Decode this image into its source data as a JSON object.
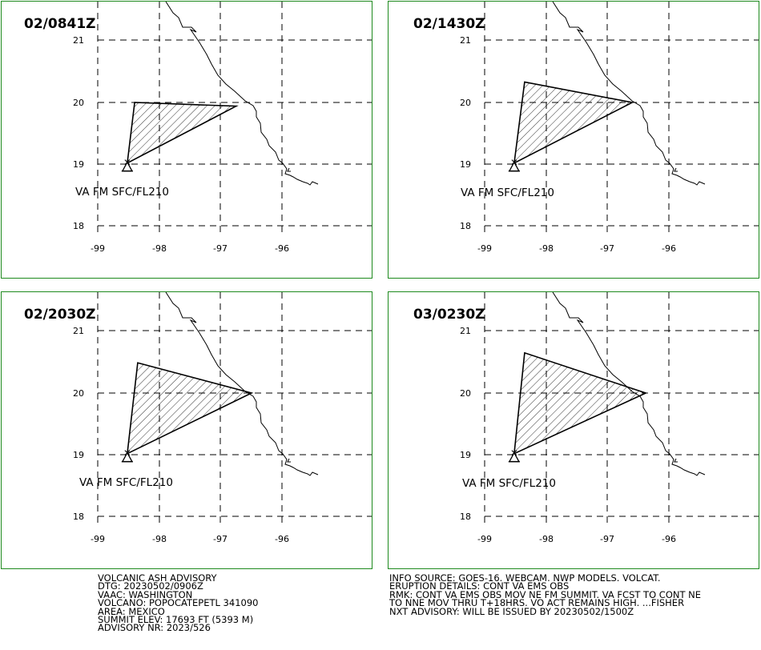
{
  "panels": [
    {
      "time": "02/0841Z",
      "level": "VA FM SFC/FL210",
      "polygon": [
        [
          -98.52,
          19.02
        ],
        [
          -98.4,
          20.0
        ],
        [
          -96.75,
          19.94
        ]
      ]
    },
    {
      "time": "02/1430Z",
      "level": "VA FM SFC/FL210",
      "polygon": [
        [
          -98.52,
          19.02
        ],
        [
          -98.35,
          20.33
        ],
        [
          -96.6,
          20.0
        ]
      ]
    },
    {
      "time": "02/2030Z",
      "level": "VA FM SFC/FL210",
      "polygon": [
        [
          -98.52,
          19.02
        ],
        [
          -98.35,
          20.49
        ],
        [
          -96.5,
          20.0
        ]
      ]
    },
    {
      "time": "03/0230Z",
      "level": "VA FM SFC/FL210",
      "polygon": [
        [
          -98.52,
          19.02
        ],
        [
          -98.35,
          20.65
        ],
        [
          -96.38,
          20.0
        ]
      ]
    }
  ],
  "axes": {
    "lon_ticks": [
      "-99",
      "-98",
      "-97",
      "-96"
    ],
    "lat_ticks": [
      "21",
      "20",
      "19",
      "18"
    ]
  },
  "advisory_left": [
    "VOLCANIC ASH ADVISORY",
    "DTG: 20230502/0906Z",
    "VAAC: WASHINGTON",
    "VOLCANO: POPOCATEPETL 341090",
    "AREA: MEXICO",
    "SUMMIT ELEV: 17693 FT (5393 M)",
    "ADVISORY NR: 2023/526"
  ],
  "advisory_right": [
    "INFO SOURCE: GOES-16. WEBCAM. NWP MODELS. VOLCAT.",
    "ERUPTION DETAILS: CONT VA EMS OBS",
    "RMK: CONT VA EMS OBS MOV NE FM SUMMIT. VA FCST TO CONT NE",
    "TO NNE MOV THRU T+18HRS. VO ACT REMAINS HIGH. ...FISHER",
    "NXT ADVISORY: WILL BE ISSUED BY 20230502/1500Z"
  ],
  "colors": {
    "frame": "#1e8a1e",
    "ink": "#000000"
  }
}
